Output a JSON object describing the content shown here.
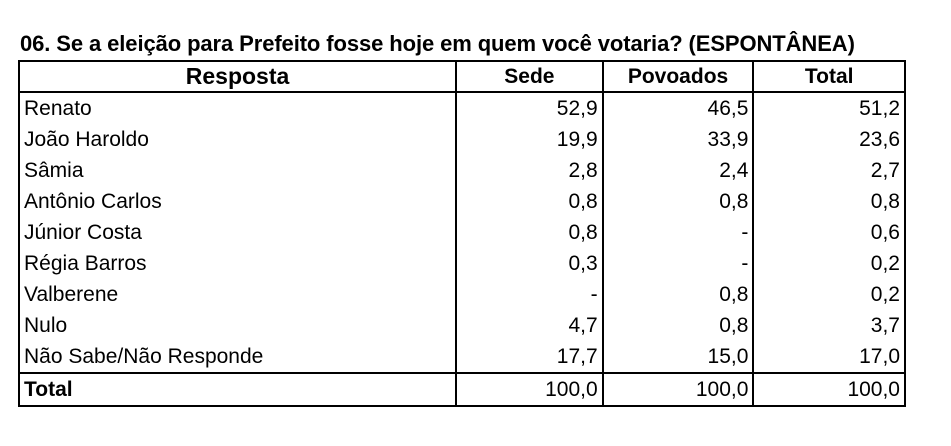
{
  "title": "06. Se a eleição para Prefeito fosse hoje em quem você votaria? (ESPONTÂNEA)",
  "table": {
    "headers": [
      "Resposta",
      "Sede",
      "Povoados",
      "Total"
    ],
    "rows": [
      {
        "resposta": "Renato",
        "sede": "52,9",
        "povoados": "46,5",
        "total": "51,2"
      },
      {
        "resposta": "João Haroldo",
        "sede": "19,9",
        "povoados": "33,9",
        "total": "23,6"
      },
      {
        "resposta": "Sâmia",
        "sede": "2,8",
        "povoados": "2,4",
        "total": "2,7"
      },
      {
        "resposta": "Antônio Carlos",
        "sede": "0,8",
        "povoados": "0,8",
        "total": "0,8"
      },
      {
        "resposta": "Júnior Costa",
        "sede": "0,8",
        "povoados": "-",
        "total": "0,6"
      },
      {
        "resposta": "Régia Barros",
        "sede": "0,3",
        "povoados": "-",
        "total": "0,2"
      },
      {
        "resposta": "Valberene",
        "sede": "-",
        "povoados": "0,8",
        "total": "0,2"
      },
      {
        "resposta": "Nulo",
        "sede": "4,7",
        "povoados": "0,8",
        "total": "3,7"
      },
      {
        "resposta": "Não Sabe/Não Responde",
        "sede": "17,7",
        "povoados": "15,0",
        "total": "17,0"
      }
    ],
    "total_row": {
      "resposta": "Total",
      "sede": "100,0",
      "povoados": "100,0",
      "total": "100,0"
    }
  }
}
